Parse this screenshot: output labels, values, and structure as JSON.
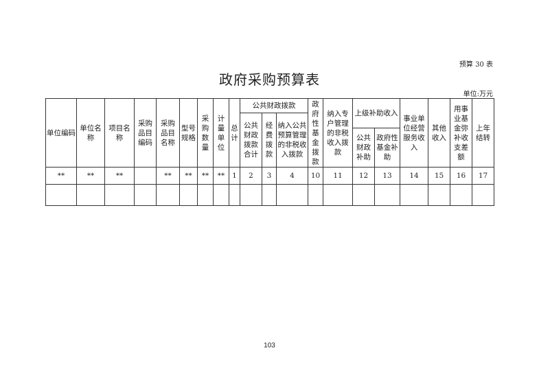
{
  "form_no": "预算 30 表",
  "title": "政府采购预算表",
  "unit": "单位:万元",
  "headers": {
    "unit_code": "单位编码",
    "unit_name": "单位名称",
    "project_name": "项目名称",
    "item_code": "采购品目编码",
    "item_name": "采购品目名称",
    "model_spec": "型号规格",
    "quantity": "采购数量",
    "measure_unit": "计量单位",
    "total": "总计",
    "public_finance_group": "公共财政拨款",
    "public_finance_total": "公共财政拨款合计",
    "funding": "经费拨款",
    "non_tax_budget": "纳入公共预算管理的非税收入拨款",
    "gov_fund": "政府性基金拨款",
    "special_account_non_tax": "纳入专户管理的非税收入拨款",
    "superior_subsidy_group": "上级补助收入",
    "public_finance_subsidy": "公共财政补助",
    "gov_fund_subsidy": "政府性基金补助",
    "business_income": "事业单位经营服务收入",
    "other_income": "其他收入",
    "fund_offset": "用事业基金弥补收支差额",
    "carryover": "上年结转"
  },
  "row_values": [
    "**",
    "**",
    "**",
    "",
    "**",
    "**",
    "**",
    "**",
    "1",
    "2",
    "3",
    "4",
    "10",
    "11",
    "12",
    "13",
    "14",
    "15",
    "16",
    "17"
  ],
  "page_number": "103"
}
